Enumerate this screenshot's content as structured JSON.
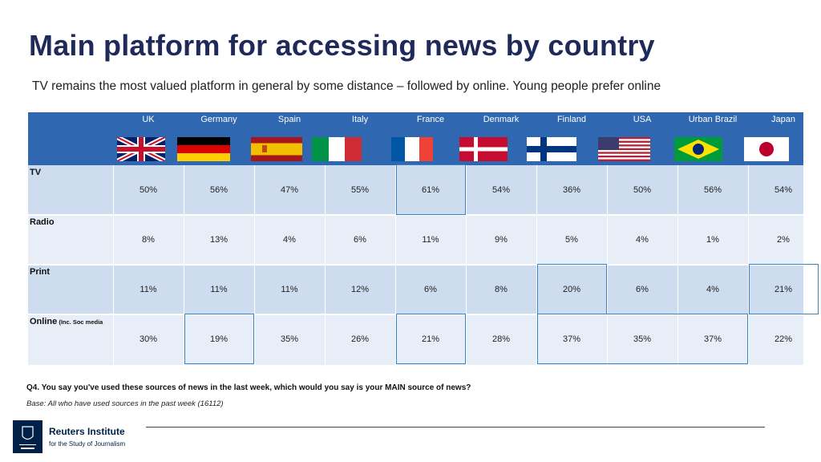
{
  "title": "Main platform for accessing news by country",
  "subtitle": "TV remains the most valued platform in general by some distance – followed by online. Young people prefer online",
  "chart_data": {
    "type": "table",
    "columns": [
      "UK",
      "Germany",
      "Spain",
      "Italy",
      "France",
      "Denmark",
      "Finland",
      "USA",
      "Urban Brazil",
      "Japan"
    ],
    "rows": [
      {
        "label": "TV",
        "note": "",
        "icon": "tv-icon",
        "values": [
          "50%",
          "56%",
          "47%",
          "55%",
          "61%",
          "54%",
          "36%",
          "50%",
          "56%",
          "54%"
        ]
      },
      {
        "label": "Radio",
        "note": "",
        "icon": "radio-icon",
        "values": [
          "8%",
          "13%",
          "4%",
          "6%",
          "11%",
          "9%",
          "5%",
          "4%",
          "1%",
          "2%"
        ]
      },
      {
        "label": "Print",
        "note": "",
        "icon": "newspapers-icon",
        "values": [
          "11%",
          "11%",
          "11%",
          "12%",
          "6%",
          "8%",
          "20%",
          "6%",
          "4%",
          "21%"
        ]
      },
      {
        "label": "Online",
        "note": "(Inc. Soc media",
        "icon": "laptop-icon",
        "values": [
          "30%",
          "19%",
          "35%",
          "26%",
          "21%",
          "28%",
          "37%",
          "35%",
          "37%",
          "22%"
        ]
      }
    ],
    "highlights": [
      {
        "row": 0,
        "col_start": 4,
        "col_end": 4
      },
      {
        "row": 2,
        "col_start": 6,
        "col_end": 6
      },
      {
        "row": 2,
        "col_start": 9,
        "col_end": 9
      },
      {
        "row": 3,
        "col_start": 1,
        "col_end": 1
      },
      {
        "row": 3,
        "col_start": 4,
        "col_end": 4
      },
      {
        "row": 3,
        "col_start": 6,
        "col_end": 8
      }
    ],
    "colors": {
      "header": "#2f67b1",
      "row_dark": "#cedcef",
      "row_light": "#e8eef8",
      "highlight": "#3b84c4"
    }
  },
  "question": "Q4.  You say you've used these sources of news in the last week, which would you say is your MAIN source of news?",
  "base": "Base: All who have used sources in the past week (16112)",
  "logo": {
    "name": "Reuters Institute",
    "tagline": "for the Study of Journalism"
  }
}
